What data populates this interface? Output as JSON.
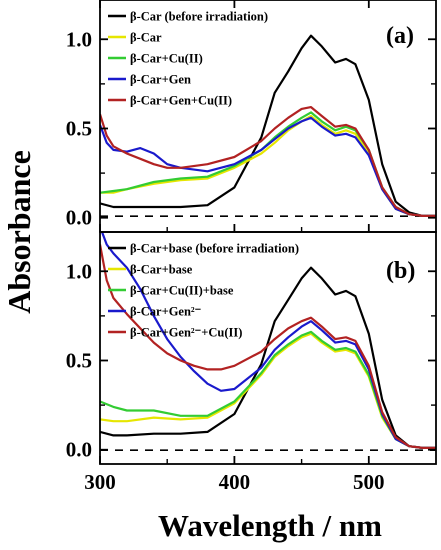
{
  "chart_data": {
    "type": "line",
    "xlabel": "Wavelength / nm",
    "ylabel": "Absorbance",
    "xlim": [
      300,
      550
    ],
    "x_ticks": [
      "300",
      "400",
      "500"
    ],
    "panels": [
      {
        "label": "(a)",
        "ylim": [
          -0.08,
          1.22
        ],
        "y_ticks": [
          "0.0",
          "0.5",
          "1.0"
        ],
        "series": [
          {
            "name": "β-Car (before irradiation)",
            "color": "#000000",
            "x": [
              300,
              310,
              320,
              340,
              360,
              380,
              400,
              420,
              430,
              440,
              450,
              457,
              465,
              475,
              483,
              490,
              500,
              510,
              520,
              530,
              540,
              550
            ],
            "y": [
              0.08,
              0.06,
              0.06,
              0.06,
              0.06,
              0.07,
              0.17,
              0.45,
              0.7,
              0.82,
              0.95,
              1.02,
              0.96,
              0.87,
              0.89,
              0.86,
              0.66,
              0.3,
              0.09,
              0.03,
              0.01,
              0.01
            ]
          },
          {
            "name": "β-Car",
            "color": "#e6e600",
            "x": [
              300,
              310,
              320,
              340,
              360,
              380,
              400,
              420,
              430,
              440,
              450,
              457,
              465,
              475,
              483,
              490,
              500,
              510,
              520,
              530,
              540,
              550
            ],
            "y": [
              0.14,
              0.14,
              0.16,
              0.19,
              0.21,
              0.22,
              0.28,
              0.36,
              0.42,
              0.49,
              0.54,
              0.57,
              0.52,
              0.47,
              0.49,
              0.47,
              0.36,
              0.16,
              0.05,
              0.02,
              0.01,
              0.01
            ]
          },
          {
            "name": "β-Car+Cu(II)",
            "color": "#33cc33",
            "x": [
              300,
              310,
              320,
              340,
              360,
              380,
              400,
              420,
              430,
              440,
              450,
              457,
              465,
              475,
              483,
              490,
              500,
              510,
              520,
              530,
              540,
              550
            ],
            "y": [
              0.14,
              0.15,
              0.16,
              0.2,
              0.22,
              0.23,
              0.29,
              0.38,
              0.45,
              0.51,
              0.56,
              0.59,
              0.54,
              0.49,
              0.51,
              0.49,
              0.38,
              0.17,
              0.06,
              0.02,
              0.01,
              0.01
            ]
          },
          {
            "name": "β-Car+Gen",
            "color": "#1a1acc",
            "x": [
              300,
              305,
              310,
              320,
              330,
              340,
              350,
              360,
              380,
              400,
              420,
              430,
              440,
              450,
              457,
              465,
              475,
              483,
              490,
              500,
              510,
              520,
              530,
              540,
              550
            ],
            "y": [
              0.52,
              0.42,
              0.38,
              0.37,
              0.39,
              0.36,
              0.3,
              0.28,
              0.26,
              0.3,
              0.38,
              0.44,
              0.5,
              0.54,
              0.56,
              0.51,
              0.46,
              0.47,
              0.45,
              0.35,
              0.16,
              0.05,
              0.02,
              0.01,
              0.01
            ]
          },
          {
            "name": "β-Car+Gen+Cu(II)",
            "color": "#b22222",
            "x": [
              300,
              305,
              310,
              320,
              330,
              340,
              350,
              360,
              380,
              400,
              420,
              430,
              440,
              450,
              457,
              465,
              475,
              483,
              490,
              500,
              510,
              520,
              530,
              540,
              550
            ],
            "y": [
              0.58,
              0.46,
              0.4,
              0.36,
              0.33,
              0.3,
              0.28,
              0.28,
              0.3,
              0.34,
              0.43,
              0.5,
              0.56,
              0.61,
              0.62,
              0.57,
              0.51,
              0.52,
              0.5,
              0.38,
              0.17,
              0.06,
              0.02,
              0.01,
              0.01
            ]
          }
        ]
      },
      {
        "label": "(b)",
        "ylim": [
          -0.08,
          1.22
        ],
        "y_ticks": [
          "0.0",
          "0.5",
          "1.0"
        ],
        "series": [
          {
            "name": "β-Car+base (before irradiation)",
            "color": "#000000",
            "x": [
              300,
              310,
              320,
              340,
              360,
              380,
              400,
              420,
              430,
              440,
              450,
              457,
              465,
              475,
              483,
              490,
              500,
              510,
              520,
              530,
              540,
              550
            ],
            "y": [
              0.1,
              0.08,
              0.08,
              0.09,
              0.09,
              0.1,
              0.2,
              0.48,
              0.72,
              0.84,
              0.96,
              1.02,
              0.96,
              0.87,
              0.89,
              0.86,
              0.65,
              0.28,
              0.08,
              0.02,
              0.01,
              0.01
            ]
          },
          {
            "name": "β-Car+base",
            "color": "#e6e600",
            "x": [
              300,
              310,
              320,
              340,
              360,
              380,
              400,
              420,
              430,
              440,
              450,
              457,
              465,
              475,
              483,
              490,
              500,
              510,
              520,
              530,
              540,
              550
            ],
            "y": [
              0.17,
              0.16,
              0.16,
              0.18,
              0.17,
              0.18,
              0.26,
              0.42,
              0.52,
              0.58,
              0.63,
              0.65,
              0.6,
              0.55,
              0.56,
              0.54,
              0.41,
              0.18,
              0.06,
              0.02,
              0.01,
              0.01
            ]
          },
          {
            "name": "β-Car+Cu(II)+base",
            "color": "#33cc33",
            "x": [
              300,
              310,
              320,
              340,
              360,
              380,
              400,
              420,
              430,
              440,
              450,
              457,
              465,
              475,
              483,
              490,
              500,
              510,
              520,
              530,
              540,
              550
            ],
            "y": [
              0.27,
              0.24,
              0.22,
              0.22,
              0.19,
              0.19,
              0.27,
              0.43,
              0.53,
              0.59,
              0.64,
              0.66,
              0.61,
              0.56,
              0.57,
              0.55,
              0.42,
              0.19,
              0.06,
              0.02,
              0.01,
              0.01
            ]
          },
          {
            "name": "β-Car+Gen²⁻",
            "color": "#1a1acc",
            "x": [
              300,
              305,
              310,
              320,
              330,
              340,
              350,
              360,
              370,
              380,
              390,
              400,
              420,
              430,
              440,
              450,
              457,
              465,
              475,
              483,
              490,
              500,
              510,
              520,
              530,
              540,
              550
            ],
            "y": [
              1.25,
              1.15,
              1.1,
              1.02,
              0.9,
              0.75,
              0.62,
              0.52,
              0.44,
              0.37,
              0.33,
              0.34,
              0.46,
              0.56,
              0.63,
              0.69,
              0.72,
              0.67,
              0.6,
              0.61,
              0.59,
              0.45,
              0.2,
              0.06,
              0.02,
              0.01,
              0.01
            ]
          },
          {
            "name": "β-Car+Gen²⁻+Cu(II)",
            "color": "#b22222",
            "x": [
              300,
              305,
              310,
              320,
              330,
              340,
              350,
              360,
              370,
              380,
              390,
              400,
              420,
              430,
              440,
              450,
              457,
              465,
              475,
              483,
              490,
              500,
              510,
              520,
              530,
              540,
              550
            ],
            "y": [
              1.15,
              0.95,
              0.85,
              0.76,
              0.68,
              0.6,
              0.54,
              0.5,
              0.47,
              0.45,
              0.45,
              0.47,
              0.55,
              0.62,
              0.68,
              0.72,
              0.74,
              0.69,
              0.62,
              0.63,
              0.61,
              0.47,
              0.21,
              0.07,
              0.02,
              0.01,
              0.01
            ]
          }
        ]
      }
    ]
  }
}
